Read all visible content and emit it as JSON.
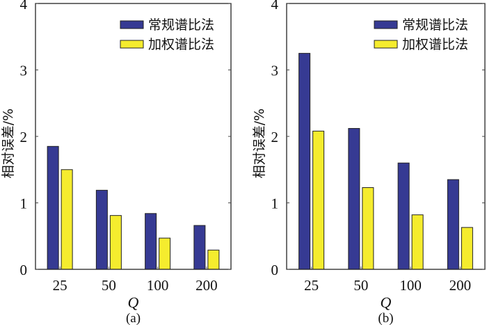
{
  "colors": {
    "series1": "#363a93",
    "series2": "#f5ec2e"
  },
  "chart_data": [
    {
      "type": "bar",
      "caption": "(a)",
      "xlabel": "Q",
      "ylabel": "相对误差/%",
      "categories": [
        "25",
        "50",
        "100",
        "200"
      ],
      "ylim": [
        0,
        4
      ],
      "yticks": [
        "0",
        "1",
        "2",
        "3",
        "4"
      ],
      "legend_position": "top-right",
      "series": [
        {
          "name": "常规谱比法",
          "values": [
            1.85,
            1.19,
            0.84,
            0.66
          ]
        },
        {
          "name": "加权谱比法",
          "values": [
            1.5,
            0.81,
            0.47,
            0.29
          ]
        }
      ]
    },
    {
      "type": "bar",
      "caption": "(b)",
      "xlabel": "Q",
      "ylabel": "相对误差/%",
      "categories": [
        "25",
        "50",
        "100",
        "200"
      ],
      "ylim": [
        0,
        4
      ],
      "yticks": [
        "0",
        "1",
        "2",
        "3",
        "4"
      ],
      "legend_position": "top-right",
      "series": [
        {
          "name": "常规谱比法",
          "values": [
            3.25,
            2.12,
            1.6,
            1.35
          ]
        },
        {
          "name": "加权谱比法",
          "values": [
            2.08,
            1.23,
            0.82,
            0.63
          ]
        }
      ]
    }
  ]
}
